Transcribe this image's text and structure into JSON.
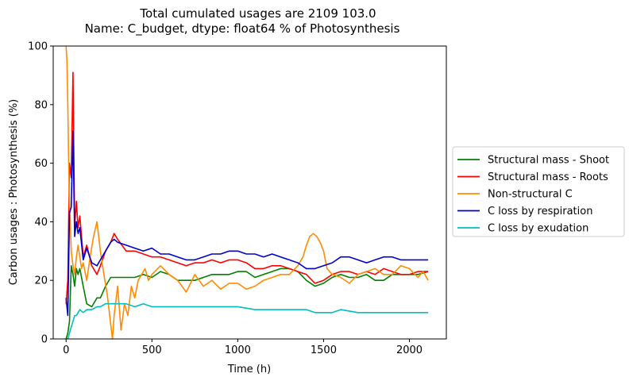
{
  "chart_data": {
    "type": "line",
    "title_line1": "Total cumulated usages are 2109    103.0",
    "title_line2": "Name: C_budget, dtype: float64 % of Photosynthesis",
    "xlabel": "Time (h)",
    "ylabel": "Carbon usages : Photosynthesis (%)",
    "xlim": [
      -75,
      2215
    ],
    "ylim": [
      0,
      100
    ],
    "xticks": [
      0,
      500,
      1000,
      1500,
      2000
    ],
    "yticks": [
      0,
      20,
      40,
      60,
      80,
      100
    ],
    "grid": false,
    "legend_position": "outside-right",
    "series": [
      {
        "name": "Structural mass - Shoot",
        "color": "#008000",
        "x": [
          0,
          10,
          20,
          30,
          40,
          50,
          60,
          70,
          80,
          100,
          120,
          150,
          180,
          200,
          230,
          260,
          300,
          350,
          400,
          450,
          500,
          550,
          600,
          650,
          700,
          750,
          800,
          850,
          900,
          950,
          1000,
          1050,
          1100,
          1150,
          1200,
          1250,
          1300,
          1350,
          1400,
          1450,
          1500,
          1550,
          1600,
          1650,
          1700,
          1750,
          1800,
          1850,
          1900,
          1950,
          2000,
          2050,
          2109
        ],
        "y": [
          0,
          2,
          6,
          25,
          22,
          18,
          24,
          22,
          24,
          18,
          12,
          11,
          14,
          14,
          18,
          21,
          21,
          21,
          21,
          22,
          21,
          23,
          22,
          20,
          20,
          20,
          21,
          22,
          22,
          22,
          23,
          23,
          21,
          22,
          23,
          24,
          24,
          23,
          20,
          18,
          19,
          21,
          22,
          21,
          21,
          22,
          20,
          20,
          22,
          22,
          22,
          22,
          23
        ]
      },
      {
        "name": "Structural mass - Roots",
        "color": "#ff0000",
        "x": [
          0,
          10,
          20,
          30,
          40,
          50,
          60,
          70,
          80,
          100,
          120,
          150,
          180,
          200,
          230,
          260,
          280,
          300,
          350,
          400,
          450,
          500,
          550,
          600,
          650,
          700,
          750,
          800,
          850,
          900,
          950,
          1000,
          1050,
          1100,
          1150,
          1200,
          1250,
          1300,
          1350,
          1400,
          1450,
          1500,
          1550,
          1600,
          1650,
          1700,
          1750,
          1800,
          1850,
          1900,
          1950,
          2000,
          2050,
          2109
        ],
        "y": [
          12,
          20,
          60,
          55,
          91,
          38,
          47,
          38,
          42,
          28,
          32,
          25,
          22,
          25,
          30,
          33,
          36,
          34,
          30,
          30,
          29,
          28,
          28,
          27,
          26,
          25,
          26,
          26,
          27,
          26,
          27,
          27,
          26,
          24,
          24,
          25,
          25,
          24,
          23,
          22,
          19,
          20,
          22,
          23,
          23,
          22,
          23,
          22,
          24,
          23,
          22,
          22,
          23,
          23
        ]
      },
      {
        "name": "Non-structural C",
        "color": "#ff8c00",
        "x": [
          0,
          5,
          10,
          15,
          20,
          25,
          30,
          40,
          50,
          60,
          70,
          80,
          90,
          100,
          120,
          140,
          160,
          180,
          200,
          220,
          240,
          260,
          270,
          280,
          300,
          320,
          340,
          360,
          380,
          400,
          420,
          440,
          460,
          480,
          500,
          550,
          600,
          650,
          700,
          750,
          800,
          850,
          900,
          950,
          1000,
          1050,
          1100,
          1150,
          1200,
          1250,
          1300,
          1350,
          1380,
          1400,
          1420,
          1440,
          1460,
          1480,
          1500,
          1520,
          1550,
          1600,
          1650,
          1700,
          1750,
          1800,
          1850,
          1900,
          1950,
          2000,
          2050,
          2080,
          2109
        ],
        "y": [
          100,
          95,
          80,
          60,
          45,
          38,
          30,
          25,
          22,
          28,
          32,
          28,
          24,
          26,
          20,
          28,
          35,
          40,
          30,
          22,
          15,
          5,
          0,
          8,
          18,
          3,
          12,
          8,
          18,
          14,
          20,
          22,
          24,
          20,
          22,
          25,
          22,
          20,
          16,
          22,
          18,
          20,
          17,
          19,
          19,
          17,
          18,
          20,
          21,
          22,
          22,
          25,
          28,
          32,
          35,
          36,
          35,
          33,
          30,
          24,
          22,
          21,
          19,
          22,
          23,
          24,
          22,
          22,
          25,
          24,
          21,
          23,
          20
        ]
      },
      {
        "name": "C loss by respiration",
        "color": "#0000cd",
        "x": [
          0,
          10,
          20,
          30,
          40,
          50,
          60,
          70,
          80,
          100,
          120,
          150,
          180,
          200,
          230,
          260,
          280,
          300,
          350,
          400,
          450,
          500,
          550,
          600,
          650,
          700,
          750,
          800,
          850,
          900,
          950,
          1000,
          1050,
          1100,
          1150,
          1200,
          1250,
          1300,
          1350,
          1400,
          1450,
          1500,
          1550,
          1600,
          1650,
          1700,
          1750,
          1800,
          1850,
          1900,
          1950,
          2000,
          2050,
          2109
        ],
        "y": [
          14,
          8,
          43,
          45,
          71,
          35,
          40,
          36,
          38,
          27,
          31,
          26,
          25,
          27,
          30,
          33,
          34,
          33,
          32,
          31,
          30,
          31,
          29,
          29,
          28,
          27,
          27,
          28,
          29,
          29,
          30,
          30,
          29,
          29,
          28,
          29,
          28,
          27,
          26,
          24,
          24,
          25,
          26,
          28,
          28,
          27,
          26,
          27,
          28,
          28,
          27,
          27,
          27,
          27
        ]
      },
      {
        "name": "C loss by exudation",
        "color": "#00bfbf",
        "x": [
          0,
          10,
          20,
          30,
          40,
          50,
          60,
          70,
          80,
          100,
          120,
          150,
          180,
          200,
          230,
          260,
          300,
          350,
          400,
          450,
          500,
          600,
          700,
          800,
          900,
          1000,
          1100,
          1200,
          1300,
          1400,
          1450,
          1500,
          1550,
          1600,
          1700,
          1800,
          1900,
          2000,
          2109
        ],
        "y": [
          0,
          0,
          2,
          4,
          6,
          8,
          8,
          9,
          10,
          9,
          10,
          10,
          11,
          11,
          12,
          12,
          12,
          12,
          11,
          12,
          11,
          11,
          11,
          11,
          11,
          11,
          10,
          10,
          10,
          10,
          9,
          9,
          9,
          10,
          9,
          9,
          9,
          9,
          9
        ]
      }
    ]
  }
}
